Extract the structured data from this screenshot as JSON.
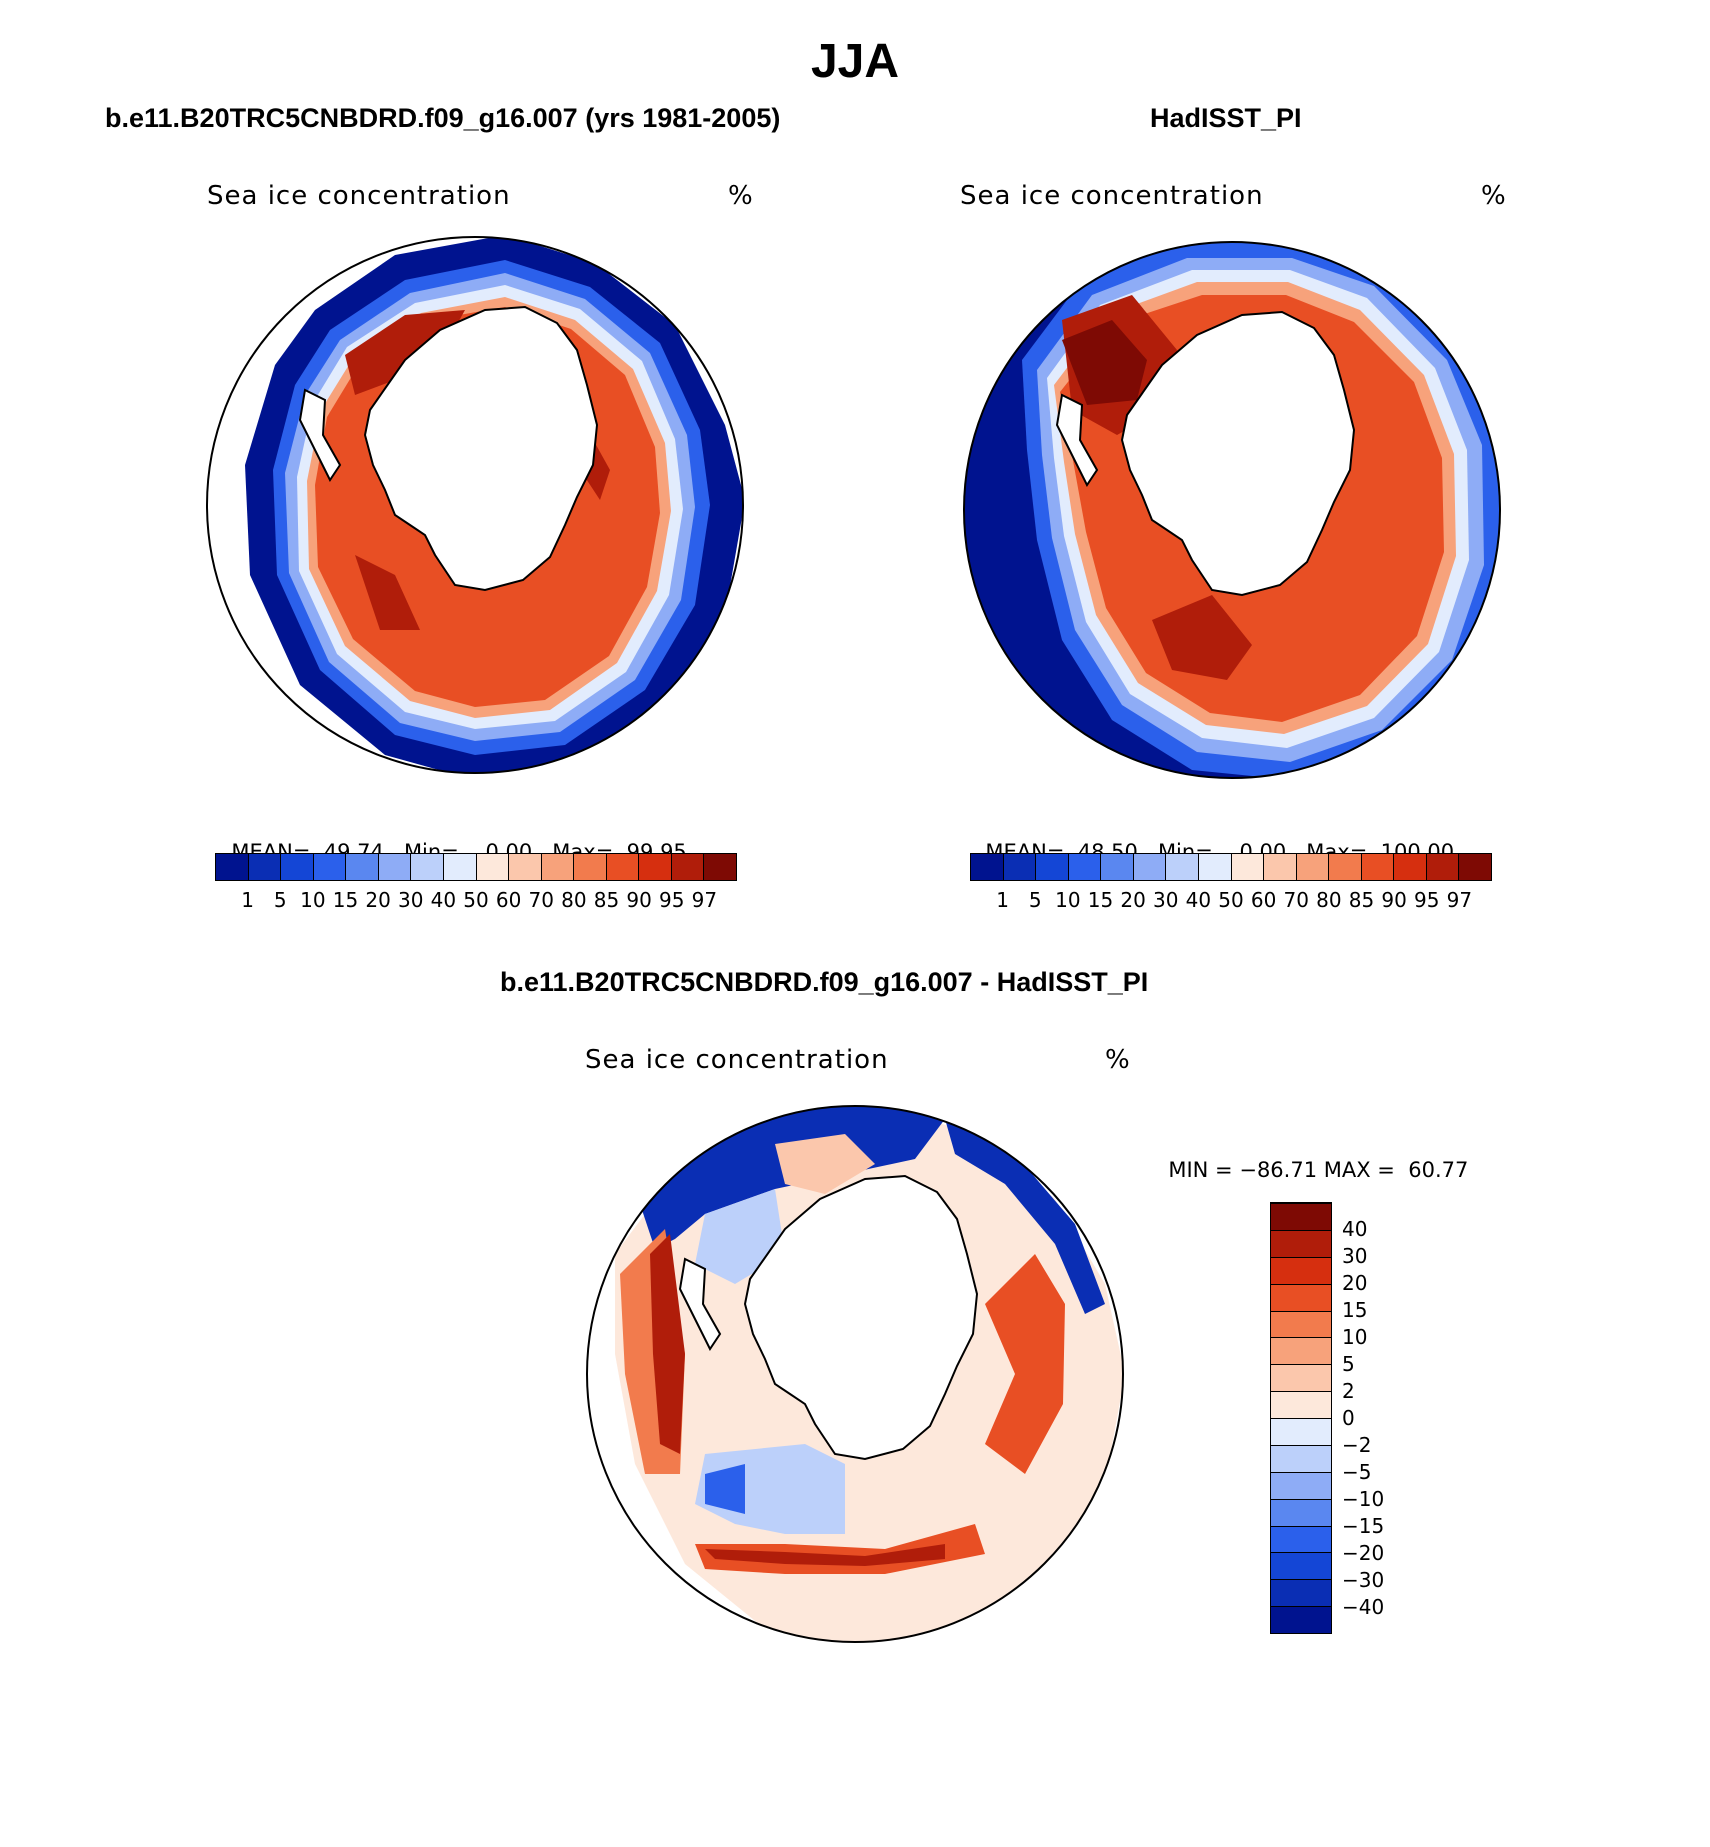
{
  "title": "JJA",
  "panels": [
    {
      "id": "model",
      "heading": "b.e11.B20TRC5CNBDRD.f09_g16.007 (yrs 1981-2005)",
      "field_label": "Sea ice concentration",
      "units": "%",
      "mean_label": "MEAN=",
      "mean_value": "49.74",
      "min_label": "Min=",
      "min_value": "0.00",
      "max_label": "Max=",
      "max_value": "99.95"
    },
    {
      "id": "obs",
      "heading": "HadISST_PI",
      "field_label": "Sea ice concentration",
      "units": "%",
      "mean_label": "MEAN=",
      "mean_value": "48.50",
      "min_label": "Min=",
      "min_value": "0.00",
      "max_label": "Max=",
      "max_value": "100.00"
    }
  ],
  "abs_colorbar": {
    "levels": [
      "1",
      "5",
      "10",
      "15",
      "20",
      "30",
      "40",
      "50",
      "60",
      "70",
      "80",
      "85",
      "90",
      "95",
      "97"
    ],
    "colors": [
      "#00138f",
      "#0a2eb4",
      "#1446d6",
      "#2b60eb",
      "#5a87f0",
      "#8eacf6",
      "#bcd0fa",
      "#e2ecfd",
      "#fde8db",
      "#fbc7ac",
      "#f7a27b",
      "#f27b4d",
      "#e84f24",
      "#d62f0f",
      "#b01d0a",
      "#7e0a04"
    ]
  },
  "diff_panel": {
    "heading": "b.e11.B20TRC5CNBDRD.f09_g16.007 - HadISST_PI",
    "field_label": "Sea ice concentration",
    "units": "%",
    "min_label": "MIN =",
    "min_value": "−86.71",
    "max_label": "MAX =",
    "max_value": "60.77"
  },
  "diff_colorbar": {
    "levels": [
      "−40",
      "−30",
      "−20",
      "−15",
      "−10",
      "−5",
      "−2",
      "0",
      "2",
      "5",
      "10",
      "15",
      "20",
      "30",
      "40"
    ],
    "colors": [
      "#00138f",
      "#0a2eb4",
      "#1446d6",
      "#2b60eb",
      "#5a87f0",
      "#8eacf6",
      "#bcd0fa",
      "#e2ecfd",
      "#fde8db",
      "#fbc7ac",
      "#f7a27b",
      "#f27b4d",
      "#e84f24",
      "#d62f0f",
      "#b01d0a",
      "#7e0a04"
    ]
  },
  "palette": {
    "deep_blue": "#00138f",
    "mid_blue": "#2b60eb",
    "pale_blue": "#e2ecfd",
    "pale_red": "#fde8db",
    "mid_red": "#e84f24",
    "dark_red": "#b01d0a",
    "land": "#ffffff"
  }
}
